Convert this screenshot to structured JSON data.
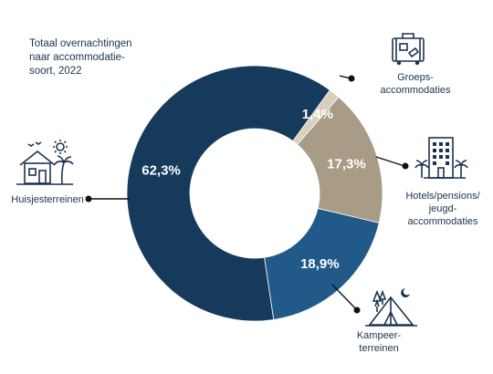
{
  "chart_data": {
    "type": "pie",
    "title": "Totaal overnachtingen naar accommodatie-soort, 2022",
    "title_lines": [
      "Totaal overnachtingen",
      "naar accommodatie-",
      "soort, 2022"
    ],
    "categories": [
      "Groepsaccommodaties",
      "Hotels/pensions/jeugdaccommodaties",
      "Kampeerterreinen",
      "Huisjesterreinen"
    ],
    "values": [
      1.4,
      17.3,
      18.9,
      62.3
    ],
    "value_labels": [
      "1,4%",
      "17,3%",
      "18,9%",
      "62,3%"
    ],
    "category_label_lines": [
      [
        "Groeps-",
        "accommodaties"
      ],
      [
        "Hotels/pensions/",
        "jeugd-",
        "accommodaties"
      ],
      [
        "Kampeer-",
        "terreinen"
      ],
      [
        "Huisjesterreinen"
      ]
    ],
    "colors": [
      "#d6d0bd",
      "#a89c86",
      "#215a89",
      "#153a5b"
    ],
    "label_text_color": "#ffffff",
    "donut": true,
    "legend": "callout labels with icons",
    "icons": [
      "suitcase-icon",
      "hotel-building-icon",
      "tent-icon",
      "holiday-house-icon"
    ]
  }
}
